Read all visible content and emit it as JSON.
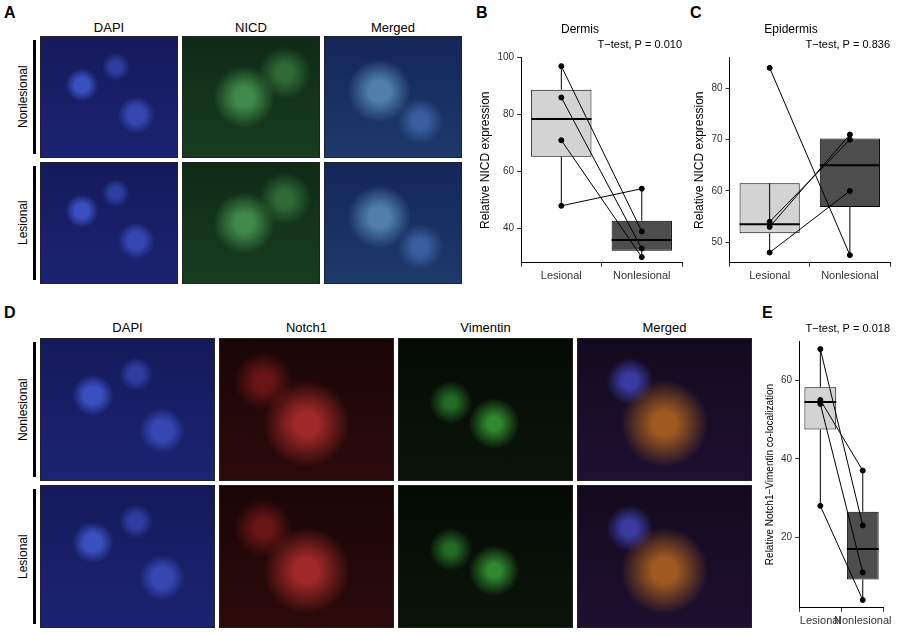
{
  "image_panels": [
    {
      "panel": "A",
      "columns": [
        "DAPI",
        "NICD",
        "Merged"
      ],
      "rows": [
        "Nonlesional",
        "Lesional"
      ]
    },
    {
      "panel": "D",
      "columns": [
        "DAPI",
        "Notch1",
        "Vimentin",
        "Merged"
      ],
      "rows": [
        "Nonlesional",
        "Lesional"
      ]
    }
  ],
  "chart_data": [
    {
      "panel": "B",
      "type": "box",
      "title": "Dermis",
      "annotation": "T−test, P = 0.010",
      "y_label": "Relative NICD expression",
      "categories": [
        "Lesional",
        "Nonlesional"
      ],
      "colors": [
        "#d3d3d3",
        "#4d4d4d"
      ],
      "values": [
        [
          97,
          86,
          71,
          48
        ],
        [
          39,
          33,
          30,
          54
        ]
      ],
      "box": [
        {
          "q1": 65.25,
          "median": 78.5,
          "q3": 88.75,
          "whisker_low": 48,
          "whisker_high": 97
        },
        {
          "q1": 32.25,
          "median": 36,
          "q3": 42.75,
          "whisker_low": 30,
          "whisker_high": 54
        }
      ],
      "ylim": [
        28,
        100
      ],
      "yticks": [
        40,
        60,
        80,
        100
      ],
      "grid": false
    },
    {
      "panel": "C",
      "type": "box",
      "title": "Epidermis",
      "annotation": "T−test, P = 0.836",
      "y_label": "Relative NICD expression",
      "categories": [
        "Lesional",
        "Nonlesional"
      ],
      "colors": [
        "#d3d3d3",
        "#4d4d4d"
      ],
      "values": [
        [
          84,
          54,
          53,
          48
        ],
        [
          47.5,
          70,
          71,
          60
        ]
      ],
      "box": [
        {
          "q1": 51.75,
          "median": 53.5,
          "q3": 61.5,
          "whisker_low": 48,
          "whisker_high": 54
        },
        {
          "q1": 56.9,
          "median": 65,
          "q3": 70.25,
          "whisker_low": 47.5,
          "whisker_high": 71
        }
      ],
      "ylim": [
        46,
        86
      ],
      "yticks": [
        50,
        60,
        70,
        80
      ],
      "grid": false
    },
    {
      "panel": "E",
      "type": "box",
      "annotation": "T−test, P = 0.018",
      "y_label": "Relative Notch1−Vimentin co-localization",
      "categories": [
        "Lesional",
        "Nonlesional"
      ],
      "colors": [
        "#d3d3d3",
        "#4d4d4d"
      ],
      "values": [
        [
          68,
          55,
          54,
          28
        ],
        [
          23,
          37,
          11,
          4
        ]
      ],
      "box": [
        {
          "q1": 47.5,
          "median": 54.5,
          "q3": 58.25,
          "whisker_low": 28,
          "whisker_high": 68
        },
        {
          "q1": 9.25,
          "median": 17,
          "q3": 26.5,
          "whisker_low": 4,
          "whisker_high": 37
        }
      ],
      "ylim": [
        2,
        70
      ],
      "yticks": [
        20,
        40,
        60
      ],
      "grid": false
    }
  ]
}
